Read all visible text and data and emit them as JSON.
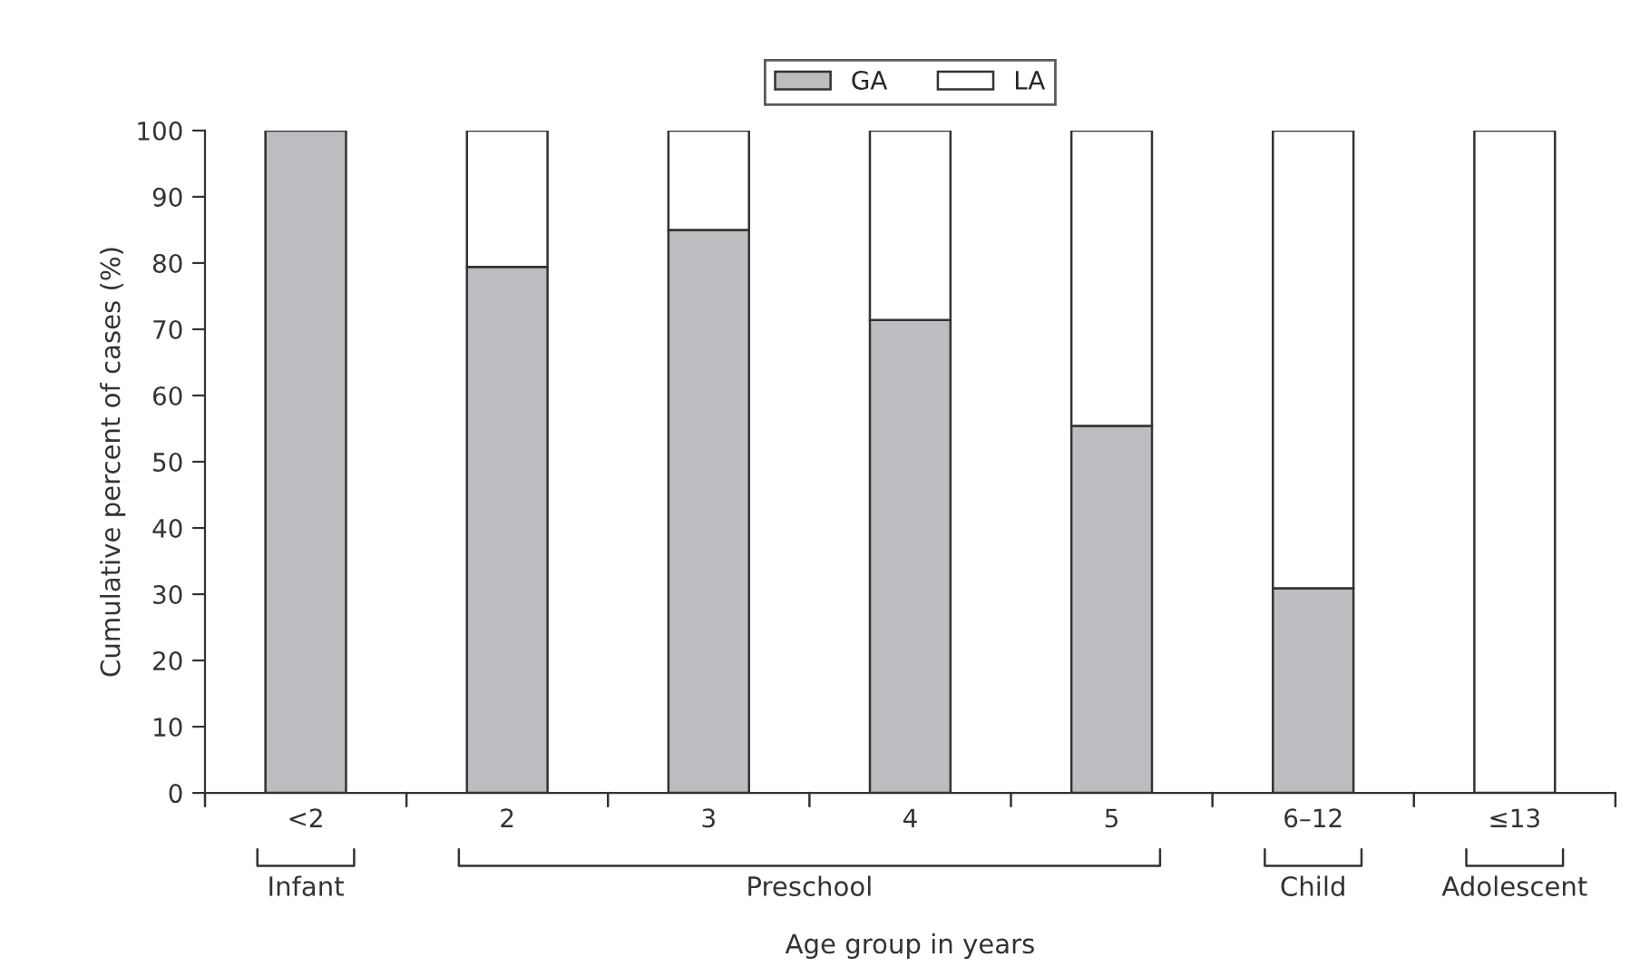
{
  "chart_data": {
    "type": "bar",
    "stacked": true,
    "xlabel": "Age group in years",
    "ylabel": "Cumulative percent of cases (%)",
    "categories": [
      "<2",
      "2",
      "3",
      "4",
      "5",
      "6–12",
      "≤13"
    ],
    "series": [
      {
        "name": "GA",
        "color": "#bcbdc1",
        "values": [
          100,
          79.4,
          85,
          71.4,
          55.4,
          30.9,
          null
        ]
      },
      {
        "name": "LA",
        "color": "#ffffff",
        "values": [
          null,
          20.6,
          15,
          28.6,
          44.6,
          69.1,
          100
        ]
      }
    ],
    "ylim": [
      0,
      100
    ],
    "yticks": [
      0,
      10,
      20,
      30,
      40,
      50,
      60,
      70,
      80,
      90,
      100
    ],
    "annotations": [
      "Infant",
      "Preschool",
      "Child",
      "Adolescent"
    ],
    "legend": "top",
    "grid": false
  }
}
